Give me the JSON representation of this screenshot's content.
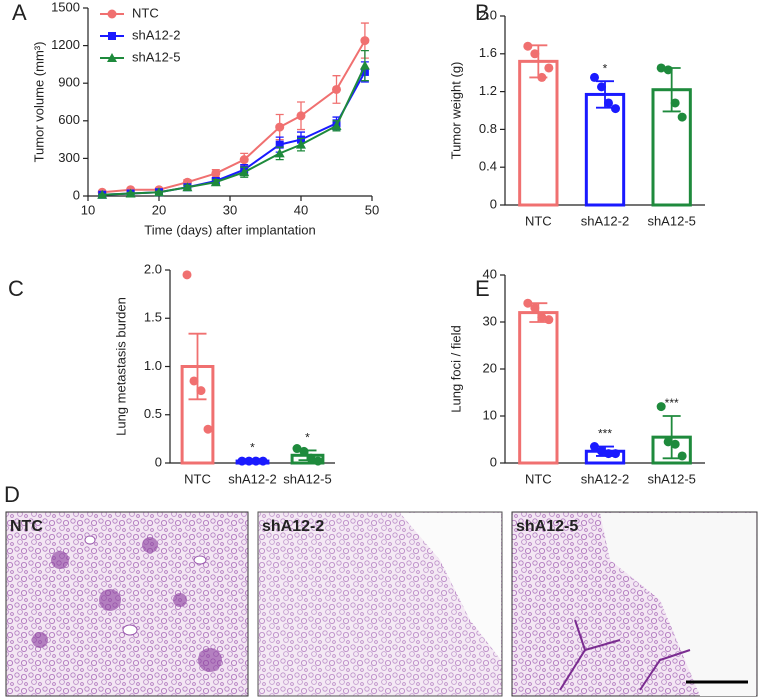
{
  "chart_data": [
    {
      "type": "line",
      "panel": "A",
      "xlabel": "Time (days) after implantation",
      "ylabel": "Tumor volume (mm³)",
      "x": [
        12,
        16,
        20,
        24,
        28,
        32,
        37,
        40,
        45,
        49
      ],
      "xlim": [
        10,
        50
      ],
      "xticks": [
        10,
        20,
        30,
        40,
        50
      ],
      "ylim": [
        0,
        1500
      ],
      "yticks": [
        0,
        300,
        600,
        900,
        1200,
        1500
      ],
      "legend": "upper left",
      "series": [
        {
          "name": "NTC",
          "color": "#f07070",
          "marker": "circle",
          "values": [
            30,
            50,
            50,
            110,
            180,
            290,
            550,
            640,
            850,
            1240
          ],
          "errors": [
            10,
            12,
            12,
            20,
            30,
            50,
            100,
            110,
            110,
            140
          ]
        },
        {
          "name": "shA12-2",
          "color": "#1a1aff",
          "marker": "square",
          "values": [
            10,
            20,
            30,
            70,
            120,
            210,
            410,
            450,
            580,
            990
          ],
          "errors": [
            5,
            8,
            8,
            15,
            20,
            40,
            60,
            60,
            50,
            80
          ]
        },
        {
          "name": "shA12-5",
          "color": "#1e8a3c",
          "marker": "triangle",
          "values": [
            10,
            20,
            30,
            70,
            110,
            190,
            340,
            410,
            560,
            1040
          ],
          "errors": [
            5,
            8,
            8,
            15,
            20,
            40,
            50,
            50,
            40,
            120
          ]
        }
      ]
    },
    {
      "type": "bar",
      "panel": "B",
      "ylabel": "Tumor weight (g)",
      "categories": [
        "NTC",
        "shA12-2",
        "shA12-5"
      ],
      "colors": [
        "#f07070",
        "#1a1aff",
        "#1e8a3c"
      ],
      "values": [
        1.52,
        1.17,
        1.22
      ],
      "errors": [
        0.17,
        0.14,
        0.23
      ],
      "points": [
        [
          1.68,
          1.6,
          1.35,
          1.45
        ],
        [
          1.35,
          1.25,
          1.08,
          1.02
        ],
        [
          1.45,
          1.43,
          1.08,
          0.93
        ]
      ],
      "annotations": [
        null,
        "*",
        null
      ],
      "ylim": [
        0,
        2
      ],
      "yticks": [
        0,
        0.4,
        0.8,
        1.2,
        1.6,
        {
          "value": 2,
          "label": "2.0"
        }
      ]
    },
    {
      "type": "bar",
      "panel": "C",
      "ylabel": "Lung metastasis burden",
      "categories": [
        "NTC",
        "shA12-2",
        "shA12-5"
      ],
      "colors": [
        "#f07070",
        "#1a1aff",
        "#1e8a3c"
      ],
      "values": [
        1.0,
        0.02,
        0.08
      ],
      "errors": [
        0.34,
        0.01,
        0.05
      ],
      "points": [
        [
          1.95,
          0.85,
          0.75,
          0.35
        ],
        [
          0.02,
          0.02,
          0.02,
          0.02
        ],
        [
          0.15,
          0.12,
          0.05,
          0.02
        ]
      ],
      "annotations": [
        null,
        "*",
        "*"
      ],
      "ylim": [
        0,
        2
      ],
      "yticks": [
        0,
        0.5,
        {
          "value": 1,
          "label": "1.0"
        },
        1.5,
        {
          "value": 2,
          "label": "2.0"
        }
      ]
    },
    {
      "type": "bar",
      "panel": "E",
      "ylabel": "Lung foci / field",
      "categories": [
        "NTC",
        "shA12-2",
        "shA12-5"
      ],
      "colors": [
        "#f07070",
        "#1a1aff",
        "#1e8a3c"
      ],
      "values": [
        32,
        2.5,
        5.5
      ],
      "errors": [
        2,
        1,
        4.5
      ],
      "points": [
        [
          34,
          33,
          31,
          30.5
        ],
        [
          3.5,
          2.5,
          2,
          2
        ],
        [
          12,
          4.5,
          4,
          1.5
        ]
      ],
      "annotations": [
        null,
        "***",
        "***"
      ],
      "ylim": [
        0,
        40
      ],
      "yticks": [
        0,
        10,
        20,
        30,
        40
      ]
    }
  ],
  "histology": {
    "panel": "D",
    "labels": [
      "NTC",
      "shA12-2",
      "shA12-5"
    ]
  }
}
